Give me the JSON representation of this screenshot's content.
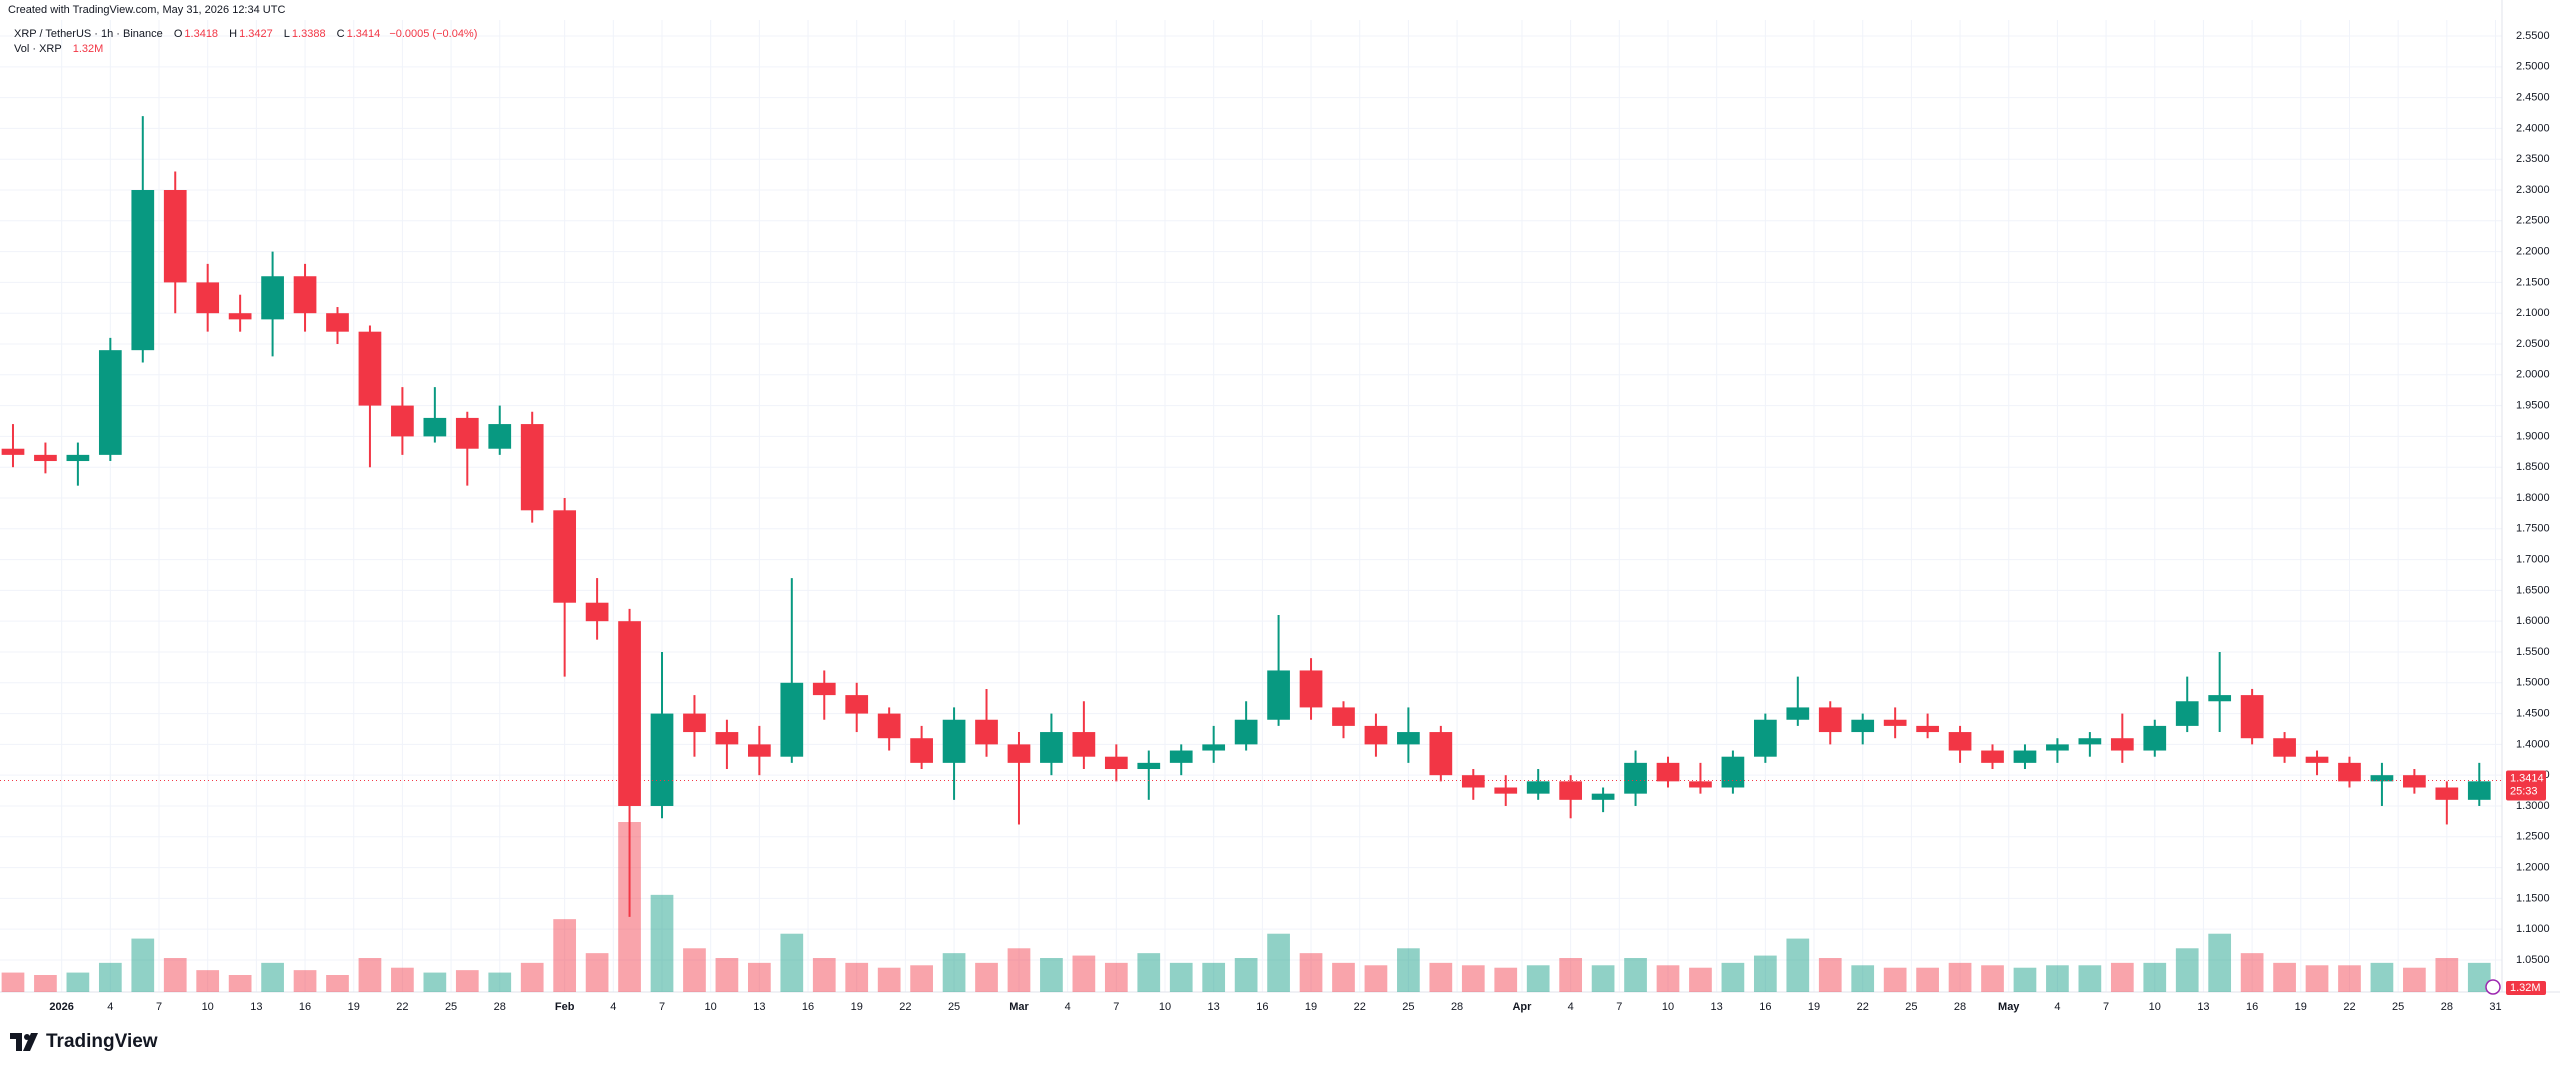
{
  "chart_data": {
    "type": "candlestick",
    "header": "Created with TradingView.com, May 31, 2026 12:34 UTC",
    "symbol": "XRP / TetherUS · 1h · Binance",
    "ohlc_labels": [
      "O",
      "H",
      "L",
      "C"
    ],
    "last_ohlc": [
      1.3418,
      1.3427,
      1.3388,
      1.3414
    ],
    "change_label": "−0.0005 (−0.04%)",
    "volume_title": "Vol · XRP",
    "volume_label": "1.32M",
    "countdown": "25:33",
    "logo": "TradingView",
    "up_color": "#089981",
    "down_color": "#f23645",
    "grid": true,
    "xlim": [
      -3.8,
      150.4
    ],
    "ylim": [
      0.998,
      2.576
    ],
    "yticks": [
      {
        "value": 1.05,
        "label": "1.0500"
      },
      {
        "value": 1.1,
        "label": "1.1000"
      },
      {
        "value": 1.15,
        "label": "1.1500"
      },
      {
        "value": 1.2,
        "label": "1.2000"
      },
      {
        "value": 1.25,
        "label": "1.2500"
      },
      {
        "value": 1.3,
        "label": "1.3000"
      },
      {
        "value": 1.35,
        "label": "1.3500"
      },
      {
        "value": 1.4,
        "label": "1.4000"
      },
      {
        "value": 1.45,
        "label": "1.4500"
      },
      {
        "value": 1.5,
        "label": "1.5000"
      },
      {
        "value": 1.55,
        "label": "1.5500"
      },
      {
        "value": 1.6,
        "label": "1.6000"
      },
      {
        "value": 1.65,
        "label": "1.6500"
      },
      {
        "value": 1.7,
        "label": "1.7000"
      },
      {
        "value": 1.75,
        "label": "1.7500"
      },
      {
        "value": 1.8,
        "label": "1.8000"
      },
      {
        "value": 1.85,
        "label": "1.8500"
      },
      {
        "value": 1.9,
        "label": "1.9000"
      },
      {
        "value": 1.95,
        "label": "1.9500"
      },
      {
        "value": 2.0,
        "label": "2.0000"
      },
      {
        "value": 2.05,
        "label": "2.0500"
      },
      {
        "value": 2.1,
        "label": "2.1000"
      },
      {
        "value": 2.15,
        "label": "2.1500"
      },
      {
        "value": 2.2,
        "label": "2.2000"
      },
      {
        "value": 2.25,
        "label": "2.2500"
      },
      {
        "value": 2.3,
        "label": "2.3000"
      },
      {
        "value": 2.35,
        "label": "2.3500"
      },
      {
        "value": 2.4,
        "label": "2.4000"
      },
      {
        "value": 2.45,
        "label": "2.4500"
      },
      {
        "value": 2.5,
        "label": "2.5000"
      },
      {
        "value": 2.55,
        "label": "2.5500"
      }
    ],
    "xticks": [
      {
        "value": 0,
        "label": "2026"
      },
      {
        "value": 3,
        "label": "4"
      },
      {
        "value": 6,
        "label": "7"
      },
      {
        "value": 9,
        "label": "10"
      },
      {
        "value": 12,
        "label": "13"
      },
      {
        "value": 15,
        "label": "16"
      },
      {
        "value": 18,
        "label": "19"
      },
      {
        "value": 21,
        "label": "22"
      },
      {
        "value": 24,
        "label": "25"
      },
      {
        "value": 27,
        "label": "28"
      },
      {
        "value": 31,
        "label": "Feb"
      },
      {
        "value": 34,
        "label": "4"
      },
      {
        "value": 37,
        "label": "7"
      },
      {
        "value": 40,
        "label": "10"
      },
      {
        "value": 43,
        "label": "13"
      },
      {
        "value": 46,
        "label": "16"
      },
      {
        "value": 49,
        "label": "19"
      },
      {
        "value": 52,
        "label": "22"
      },
      {
        "value": 55,
        "label": "25"
      },
      {
        "value": 59,
        "label": "Mar"
      },
      {
        "value": 62,
        "label": "4"
      },
      {
        "value": 65,
        "label": "7"
      },
      {
        "value": 68,
        "label": "10"
      },
      {
        "value": 71,
        "label": "13"
      },
      {
        "value": 74,
        "label": "16"
      },
      {
        "value": 77,
        "label": "19"
      },
      {
        "value": 80,
        "label": "22"
      },
      {
        "value": 83,
        "label": "25"
      },
      {
        "value": 86,
        "label": "28"
      },
      {
        "value": 90,
        "label": "Apr"
      },
      {
        "value": 93,
        "label": "4"
      },
      {
        "value": 96,
        "label": "7"
      },
      {
        "value": 99,
        "label": "10"
      },
      {
        "value": 102,
        "label": "13"
      },
      {
        "value": 105,
        "label": "16"
      },
      {
        "value": 108,
        "label": "19"
      },
      {
        "value": 111,
        "label": "22"
      },
      {
        "value": 114,
        "label": "25"
      },
      {
        "value": 117,
        "label": "28"
      },
      {
        "value": 120,
        "label": "May"
      },
      {
        "value": 123,
        "label": "4"
      },
      {
        "value": 126,
        "label": "7"
      },
      {
        "value": 129,
        "label": "10"
      },
      {
        "value": 132,
        "label": "13"
      },
      {
        "value": 135,
        "label": "16"
      },
      {
        "value": 138,
        "label": "19"
      },
      {
        "value": 141,
        "label": "22"
      },
      {
        "value": 144,
        "label": "25"
      },
      {
        "value": 147,
        "label": "28"
      },
      {
        "value": 150,
        "label": "31"
      }
    ],
    "x": [
      -3,
      -1,
      1,
      3,
      5,
      7,
      9,
      11,
      13,
      15,
      17,
      19,
      21,
      23,
      25,
      27,
      29,
      31,
      33,
      35,
      37,
      39,
      41,
      43,
      45,
      47,
      49,
      51,
      53,
      55,
      57,
      59,
      61,
      63,
      65,
      67,
      69,
      71,
      73,
      75,
      77,
      79,
      81,
      83,
      85,
      87,
      89,
      91,
      93,
      95,
      97,
      99,
      101,
      103,
      105,
      107,
      109,
      111,
      113,
      115,
      117,
      119,
      121,
      123,
      125,
      127,
      129,
      131,
      133,
      135,
      137,
      139,
      141,
      143,
      145,
      147,
      149
    ],
    "ohlc": [
      [
        1.88,
        1.92,
        1.85,
        1.87
      ],
      [
        1.87,
        1.89,
        1.84,
        1.86
      ],
      [
        1.86,
        1.89,
        1.82,
        1.87
      ],
      [
        1.87,
        2.06,
        1.86,
        2.04
      ],
      [
        2.04,
        2.42,
        2.02,
        2.3
      ],
      [
        2.3,
        2.33,
        2.1,
        2.15
      ],
      [
        2.15,
        2.18,
        2.07,
        2.1
      ],
      [
        2.1,
        2.13,
        2.07,
        2.09
      ],
      [
        2.09,
        2.2,
        2.03,
        2.16
      ],
      [
        2.16,
        2.18,
        2.07,
        2.1
      ],
      [
        2.1,
        2.11,
        2.05,
        2.07
      ],
      [
        2.07,
        2.08,
        1.85,
        1.95
      ],
      [
        1.95,
        1.98,
        1.87,
        1.9
      ],
      [
        1.9,
        1.98,
        1.89,
        1.93
      ],
      [
        1.93,
        1.94,
        1.82,
        1.88
      ],
      [
        1.88,
        1.95,
        1.87,
        1.92
      ],
      [
        1.92,
        1.94,
        1.76,
        1.78
      ],
      [
        1.78,
        1.8,
        1.51,
        1.63
      ],
      [
        1.63,
        1.67,
        1.57,
        1.6
      ],
      [
        1.6,
        1.62,
        1.12,
        1.3
      ],
      [
        1.3,
        1.55,
        1.28,
        1.45
      ],
      [
        1.45,
        1.48,
        1.38,
        1.42
      ],
      [
        1.42,
        1.44,
        1.36,
        1.4
      ],
      [
        1.4,
        1.43,
        1.35,
        1.38
      ],
      [
        1.38,
        1.67,
        1.37,
        1.5
      ],
      [
        1.5,
        1.52,
        1.44,
        1.48
      ],
      [
        1.48,
        1.5,
        1.42,
        1.45
      ],
      [
        1.45,
        1.46,
        1.39,
        1.41
      ],
      [
        1.41,
        1.43,
        1.36,
        1.37
      ],
      [
        1.37,
        1.46,
        1.31,
        1.44
      ],
      [
        1.44,
        1.49,
        1.38,
        1.4
      ],
      [
        1.4,
        1.42,
        1.27,
        1.37
      ],
      [
        1.37,
        1.45,
        1.35,
        1.42
      ],
      [
        1.42,
        1.47,
        1.36,
        1.38
      ],
      [
        1.38,
        1.4,
        1.34,
        1.36
      ],
      [
        1.36,
        1.39,
        1.31,
        1.37
      ],
      [
        1.37,
        1.4,
        1.35,
        1.39
      ],
      [
        1.39,
        1.43,
        1.37,
        1.4
      ],
      [
        1.4,
        1.47,
        1.39,
        1.44
      ],
      [
        1.44,
        1.61,
        1.43,
        1.52
      ],
      [
        1.52,
        1.54,
        1.44,
        1.46
      ],
      [
        1.46,
        1.47,
        1.41,
        1.43
      ],
      [
        1.43,
        1.45,
        1.38,
        1.4
      ],
      [
        1.4,
        1.46,
        1.37,
        1.42
      ],
      [
        1.42,
        1.43,
        1.34,
        1.35
      ],
      [
        1.35,
        1.36,
        1.31,
        1.33
      ],
      [
        1.33,
        1.35,
        1.3,
        1.32
      ],
      [
        1.32,
        1.36,
        1.31,
        1.34
      ],
      [
        1.34,
        1.35,
        1.28,
        1.31
      ],
      [
        1.31,
        1.33,
        1.29,
        1.32
      ],
      [
        1.32,
        1.39,
        1.3,
        1.37
      ],
      [
        1.37,
        1.38,
        1.33,
        1.34
      ],
      [
        1.34,
        1.37,
        1.32,
        1.33
      ],
      [
        1.33,
        1.39,
        1.32,
        1.38
      ],
      [
        1.38,
        1.45,
        1.37,
        1.44
      ],
      [
        1.44,
        1.51,
        1.43,
        1.46
      ],
      [
        1.46,
        1.47,
        1.4,
        1.42
      ],
      [
        1.42,
        1.45,
        1.4,
        1.44
      ],
      [
        1.44,
        1.46,
        1.41,
        1.43
      ],
      [
        1.43,
        1.45,
        1.41,
        1.42
      ],
      [
        1.42,
        1.43,
        1.37,
        1.39
      ],
      [
        1.39,
        1.4,
        1.36,
        1.37
      ],
      [
        1.37,
        1.4,
        1.36,
        1.39
      ],
      [
        1.39,
        1.41,
        1.37,
        1.4
      ],
      [
        1.4,
        1.42,
        1.38,
        1.41
      ],
      [
        1.41,
        1.45,
        1.37,
        1.39
      ],
      [
        1.39,
        1.44,
        1.38,
        1.43
      ],
      [
        1.43,
        1.51,
        1.42,
        1.47
      ],
      [
        1.47,
        1.55,
        1.42,
        1.48
      ],
      [
        1.48,
        1.49,
        1.4,
        1.41
      ],
      [
        1.41,
        1.42,
        1.37,
        1.38
      ],
      [
        1.38,
        1.39,
        1.35,
        1.37
      ],
      [
        1.37,
        1.38,
        1.33,
        1.34
      ],
      [
        1.34,
        1.37,
        1.3,
        1.35
      ],
      [
        1.35,
        1.36,
        1.32,
        1.33
      ],
      [
        1.33,
        1.34,
        1.27,
        1.31
      ],
      [
        1.31,
        1.37,
        1.3,
        1.34
      ]
    ],
    "volume": [
      40,
      35,
      40,
      60,
      110,
      70,
      45,
      35,
      60,
      45,
      35,
      70,
      50,
      40,
      45,
      40,
      60,
      150,
      80,
      350,
      200,
      90,
      70,
      60,
      120,
      70,
      60,
      50,
      55,
      80,
      60,
      90,
      70,
      75,
      60,
      80,
      60,
      60,
      70,
      120,
      80,
      60,
      55,
      90,
      60,
      55,
      50,
      55,
      70,
      55,
      70,
      55,
      50,
      60,
      75,
      110,
      70,
      55,
      50,
      50,
      60,
      55,
      50,
      55,
      55,
      60,
      60,
      90,
      120,
      80,
      60,
      55,
      55,
      60,
      50,
      70,
      60
    ]
  }
}
